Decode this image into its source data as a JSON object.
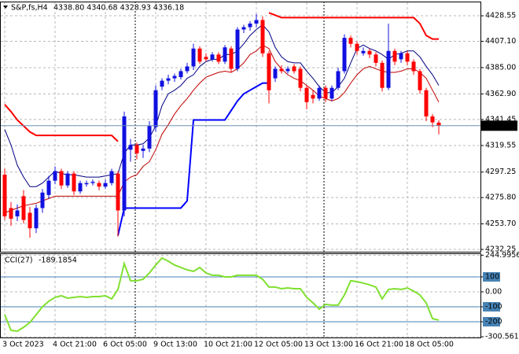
{
  "chart_data": [
    {
      "type": "candlestick",
      "title": "S&P,fs,H4",
      "ohlc_text": "4338.80 4340.68 4328.93 4336.18",
      "categories": [
        "3 Oct 2023",
        null,
        null,
        null,
        null,
        null,
        null,
        null,
        "4 Oct 21:00",
        null,
        null,
        null,
        null,
        null,
        null,
        null,
        "6 Oct 05:00",
        null,
        null,
        null,
        null,
        null,
        null,
        null,
        "9 Oct 13:00",
        null,
        null,
        null,
        null,
        null,
        null,
        null,
        "10 Oct 21:00",
        null,
        null,
        null,
        null,
        null,
        null,
        null,
        "12 Oct 05:00",
        null,
        null,
        null,
        null,
        null,
        null,
        null,
        "13 Oct 13:00",
        null,
        null,
        null,
        null,
        null,
        null,
        null,
        "16 Oct 21:00",
        null,
        null,
        null,
        null,
        null,
        null,
        null,
        "18 Oct 05:00",
        null,
        null,
        null,
        null,
        null
      ],
      "open": [
        4295,
        4267,
        4260,
        4277,
        4263,
        4250,
        4267,
        4278,
        4290,
        4298,
        4286,
        4296,
        4281,
        4287,
        4288,
        4288,
        4285,
        4288,
        4296,
        4265,
        4316,
        4320,
        4315,
        4317,
        4335,
        4369,
        4374,
        4376,
        4377,
        4382,
        4386,
        4401,
        4394,
        4392,
        4396,
        4390,
        4401,
        4384,
        4417,
        4419,
        4422,
        4425,
        4397,
        4376,
        4384,
        4382,
        4386,
        4384,
        4368,
        4362,
        4359,
        4368,
        4359,
        4368,
        4382,
        4410,
        4405,
        4397,
        4399,
        4396,
        4389,
        4368,
        4399,
        4392,
        4397,
        4390,
        4382,
        4366,
        4344,
        4338.8
      ],
      "high": [
        4300,
        4272,
        4270,
        4282,
        4268,
        4270,
        4283,
        4294,
        4302,
        4300,
        4298,
        4298,
        4290,
        4290,
        4291,
        4290,
        4291,
        4300,
        4298,
        4348,
        4325,
        4322,
        4320,
        4340,
        4370,
        4376,
        4379,
        4380,
        4384,
        4389,
        4405,
        4403,
        4397,
        4398,
        4398,
        4404,
        4403,
        4419,
        4421,
        4424,
        4430,
        4428,
        4399,
        4386,
        4387,
        4386,
        4388,
        4386,
        4370,
        4366,
        4370,
        4370,
        4370,
        4385,
        4413,
        4412,
        4407,
        4402,
        4401,
        4398,
        4391,
        4422,
        4401,
        4399,
        4399,
        4392,
        4384,
        4368,
        4346,
        4340.68
      ],
      "low": [
        4257,
        4252,
        4256,
        4254,
        4242,
        4246,
        4263,
        4275,
        4287,
        4283,
        4284,
        4278,
        4279,
        4285,
        4286,
        4282,
        4283,
        4286,
        4243,
        4260,
        4306,
        4308,
        4309,
        4314,
        4331,
        4366,
        4371,
        4373,
        4375,
        4380,
        4383,
        4388,
        4390,
        4390,
        4388,
        4388,
        4381,
        4382,
        4414,
        4416,
        4419,
        4394,
        4355,
        4373,
        4380,
        4380,
        4380,
        4365,
        4350,
        4355,
        4357,
        4356,
        4357,
        4366,
        4380,
        4402,
        4396,
        4395,
        4393,
        4386,
        4365,
        4366,
        4387,
        4389,
        4387,
        4379,
        4363,
        4340,
        4335,
        4328.93
      ],
      "close": [
        4260,
        4258,
        4265,
        4257,
        4250,
        4267,
        4280,
        4290,
        4298,
        4286,
        4296,
        4281,
        4288,
        4288,
        4289,
        4285,
        4288,
        4298,
        4265,
        4344,
        4320,
        4313,
        4317,
        4336,
        4366,
        4374,
        4376,
        4378,
        4382,
        4386,
        4401,
        4390,
        4392,
        4396,
        4390,
        4402,
        4384,
        4417,
        4419,
        4422,
        4425,
        4397,
        4366,
        4384,
        4382,
        4384,
        4382,
        4368,
        4356,
        4359,
        4368,
        4359,
        4368,
        4382,
        4410,
        4405,
        4399,
        4399,
        4396,
        4389,
        4368,
        4399,
        4390,
        4397,
        4390,
        4382,
        4366,
        4344,
        4339,
        4336.18
      ],
      "up_color": "#1010e0",
      "down_color": "#ff0000",
      "series": [
        {
          "color": "#000080",
          "line_width": 1,
          "values": [
            4333,
            4320,
            4303,
            4293,
            4285,
            4285,
            4288,
            4293,
            4298,
            4296,
            4295,
            4295,
            4294,
            4293,
            4293,
            4293,
            4294,
            4295,
            4296,
            4313,
            4320,
            4320,
            4321,
            4326,
            4336,
            4353,
            4363,
            4366,
            4370,
            4376,
            4379,
            4386,
            4390,
            4392,
            4392,
            4396,
            4396,
            4399,
            4405,
            4412,
            4417,
            4421,
            4415,
            4402,
            4394,
            4390,
            4389,
            4389,
            4382,
            4376,
            4369,
            4364,
            4364,
            4369,
            4376,
            4389,
            4401,
            4404,
            4401,
            4399,
            4396,
            4392,
            4396,
            4397,
            4399,
            4399,
            4394,
            4386,
            4379,
            4370
          ]
        },
        {
          "color": "#c00000",
          "line_width": 1,
          "values": [
            4263,
            4265,
            4267,
            4269,
            4270,
            4271,
            4273,
            4275,
            4277,
            4277,
            4277,
            4277,
            4277,
            4277,
            4277,
            4277,
            4277,
            4277,
            4277,
            4289,
            4293,
            4295,
            4302,
            4306,
            4316,
            4329,
            4337,
            4346,
            4353,
            4359,
            4366,
            4372,
            4377,
            4379,
            4381,
            4382,
            4381,
            4384,
            4389,
            4396,
            4399,
            4404,
            4401,
            4390,
            4384,
            4379,
            4376,
            4374,
            4370,
            4366,
            4361,
            4359,
            4357,
            4359,
            4364,
            4372,
            4379,
            4384,
            4386,
            4384,
            4382,
            4381,
            4381,
            4382,
            4384,
            4384,
            4381,
            4376,
            4366,
            4356
          ]
        },
        {
          "color": "#ff0000",
          "line_width": 2,
          "values": [
            4354,
            4348,
            4341,
            4336,
            4331,
            4328,
            4328,
            4328,
            4328,
            4328,
            4328,
            4328,
            4328,
            4328,
            4328,
            4328,
            4328,
            4328,
            4323,
            null,
            null,
            null,
            null,
            null,
            null,
            null,
            null,
            null,
            null,
            null,
            null,
            null,
            null,
            null,
            null,
            null,
            null,
            null,
            null,
            null,
            null,
            null,
            4431,
            4429,
            4427,
            4427,
            4427,
            4427,
            4427,
            4427,
            4427,
            4427,
            4427,
            4427,
            4427,
            4427,
            4427,
            4427,
            4427,
            4427,
            4427,
            4427,
            4427,
            4427,
            4427,
            4427,
            4422,
            4412,
            4409,
            4409
          ]
        },
        {
          "color": "#0000ff",
          "line_width": 2,
          "values": [
            null,
            null,
            null,
            null,
            null,
            null,
            null,
            null,
            null,
            null,
            null,
            null,
            null,
            null,
            null,
            null,
            null,
            null,
            4244,
            4267,
            4267,
            4267,
            4267,
            4267,
            4267,
            4267,
            4267,
            4267,
            4267,
            4273,
            4341,
            4341,
            4341,
            4341,
            4341,
            4341,
            4349,
            4357,
            4363,
            4366,
            4369,
            4372,
            4372,
            null,
            null,
            null,
            null,
            null,
            null,
            null,
            null,
            null,
            null,
            null,
            null,
            null,
            null,
            null,
            null,
            null,
            null,
            null,
            null,
            null,
            null,
            null,
            null,
            null,
            null,
            null
          ]
        }
      ],
      "current_price": 4336.18,
      "ylim": [
        4230.3,
        4441.8
      ],
      "yticks": [
        4428.55,
        {
          "value": 4407.1,
          "label": "4407.10"
        },
        {
          "value": 4385,
          "label": "4385.00"
        },
        {
          "value": 4362.9,
          "label": "4362.90"
        },
        4341.45,
        4319.55,
        4297.25,
        {
          "value": 4275.8,
          "label": "4275.80"
        },
        {
          "value": 4253.7,
          "label": "4253.70"
        },
        4232.25
      ],
      "grid": true
    },
    {
      "type": "line",
      "title": "CCI(27)",
      "color": "#80e030",
      "values": [
        -153,
        -258,
        -263,
        -237,
        -205,
        -153,
        -100,
        -63,
        -37,
        -26,
        -42,
        -37,
        -32,
        -37,
        -32,
        -32,
        -26,
        -47,
        16,
        189,
        74,
        74,
        84,
        126,
        179,
        226,
        205,
        179,
        163,
        147,
        137,
        163,
        126,
        111,
        111,
        100,
        100,
        111,
        111,
        111,
        111,
        84,
        32,
        32,
        21,
        26,
        21,
        21,
        -37,
        -74,
        -116,
        -84,
        -89,
        -89,
        -21,
        74,
        68,
        58,
        47,
        32,
        -47,
        16,
        21,
        16,
        26,
        5,
        -21,
        -74,
        -179,
        -189.1854
      ],
      "levels": [
        100,
        -100,
        -200
      ],
      "level_color": "#4682b4",
      "ylim": [
        -300.5615,
        244.9956
      ],
      "yticks": [
        244.9956,
        100,
        {
          "value": 0,
          "label": "0.00"
        },
        -100,
        -200,
        -300.5615
      ],
      "grid": true
    }
  ]
}
